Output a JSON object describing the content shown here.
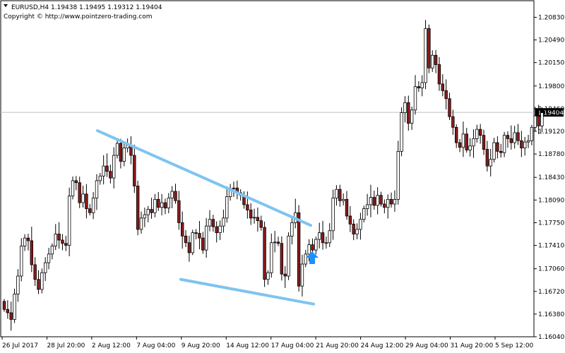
{
  "header": {
    "menu_icon": "triangle-down-icon",
    "symbol_line": "EURUSD,H4  1.19438 1.19495 1.19312 1.19404",
    "copyright": "Copyright © http://www.pointzero-trading.com"
  },
  "colors": {
    "background": "#ffffff",
    "candle": "#000000",
    "bear_body": "#8b1a1a",
    "bull_body": "#ffffff",
    "trendline": "#7ec4f0",
    "arrow": "#1e90ff",
    "price_line": "#c0c0c0",
    "price_label_bg": "#000000",
    "price_label_fg": "#ffffff"
  },
  "chart_data": {
    "type": "candlestick",
    "symbol": "EURUSD",
    "timeframe": "H4",
    "last_price": 1.19404,
    "last_price_label": "1.19404",
    "ylim": [
      1.1604,
      1.2093
    ],
    "y_ticks": [
      "1.20830",
      "1.20490",
      "1.20150",
      "1.19800",
      "1.19460",
      "1.19120",
      "1.18780",
      "1.18430",
      "1.18090",
      "1.17750",
      "1.17410",
      "1.17060",
      "1.16720",
      "1.16380",
      "1.16040"
    ],
    "x_ticks": [
      "26 Jul 2017",
      "28 Jul 20:00",
      "2 Aug 12:00",
      "7 Aug 04:00",
      "9 Aug 20:00",
      "14 Aug 12:00",
      "17 Aug 04:00",
      "21 Aug 20:00",
      "24 Aug 12:00",
      "29 Aug 04:00",
      "31 Aug 20:00",
      "5 Sep 12:00"
    ],
    "closes": [
      1.1645,
      1.164,
      1.163,
      1.1668,
      1.1695,
      1.174,
      1.1752,
      1.1748,
      1.1712,
      1.169,
      1.1675,
      1.17,
      1.1715,
      1.1728,
      1.174,
      1.1758,
      1.1749,
      1.1744,
      1.1741,
      1.1815,
      1.1838,
      1.1835,
      1.1805,
      1.1818,
      1.1796,
      1.179,
      1.1812,
      1.1838,
      1.1845,
      1.186,
      1.1852,
      1.1842,
      1.1876,
      1.1894,
      1.1867,
      1.1887,
      1.1891,
      1.1876,
      1.183,
      1.1765,
      1.1782,
      1.1787,
      1.1795,
      1.179,
      1.181,
      1.1798,
      1.1805,
      1.1797,
      1.1812,
      1.1822,
      1.1808,
      1.1775,
      1.1755,
      1.1745,
      1.173,
      1.176,
      1.1759,
      1.1752,
      1.1734,
      1.177,
      1.178,
      1.1769,
      1.176,
      1.177,
      1.1782,
      1.1814,
      1.1826,
      1.1827,
      1.182,
      1.1816,
      1.1802,
      1.1794,
      1.1782,
      1.1783,
      1.1778,
      1.1768,
      1.169,
      1.17,
      1.1745,
      1.1746,
      1.1744,
      1.1698,
      1.1695,
      1.1755,
      1.1775,
      1.179,
      1.168,
      1.1713,
      1.1728,
      1.1742,
      1.1734,
      1.175,
      1.176,
      1.1745,
      1.1745,
      1.1763,
      1.1812,
      1.1825,
      1.1808,
      1.181,
      1.1785,
      1.1773,
      1.1758,
      1.1765,
      1.178,
      1.1796,
      1.1802,
      1.1813,
      1.1801,
      1.1816,
      1.1803,
      1.1798,
      1.181,
      1.1803,
      1.181,
      1.1882,
      1.194,
      1.1955,
      1.1924,
      1.1944,
      1.1979,
      1.1977,
      1.1985,
      1.2066,
      1.2007,
      1.2026,
      1.2012,
      1.1983,
      1.1973,
      1.1961,
      1.1934,
      1.1918,
      1.1895,
      1.1888,
      1.1908,
      1.1884,
      1.189,
      1.1901,
      1.1915,
      1.1906,
      1.1885,
      1.186,
      1.187,
      1.1895,
      1.1882,
      1.188,
      1.1906,
      1.1901,
      1.1895,
      1.191,
      1.1898,
      1.1887,
      1.1896,
      1.1898,
      1.1918,
      1.1935,
      1.192,
      1.194
    ]
  }
}
